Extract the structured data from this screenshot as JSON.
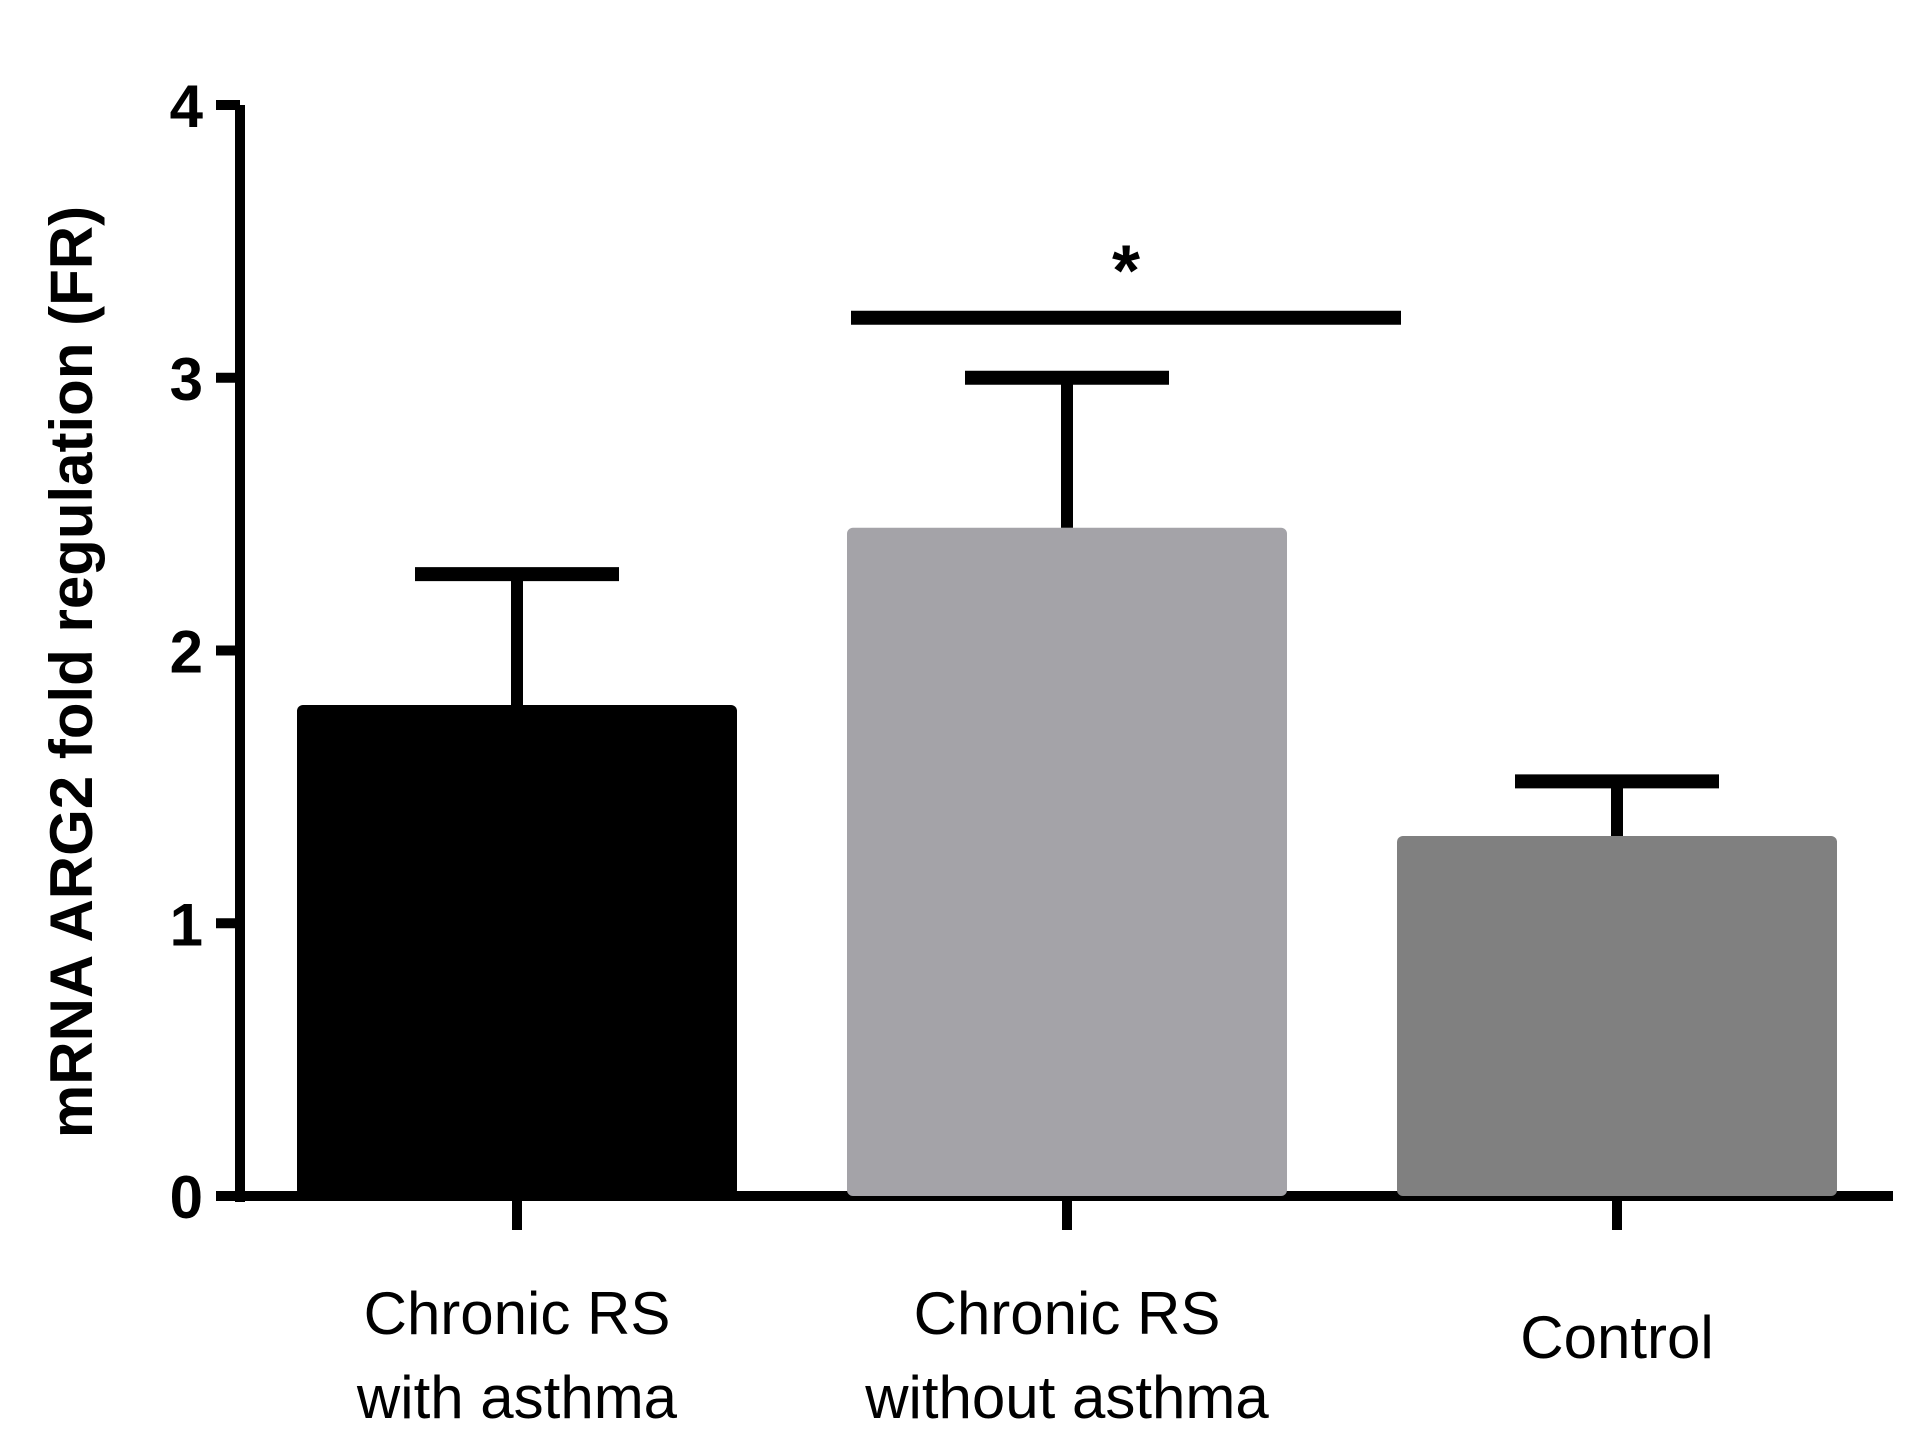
{
  "chart_data": {
    "type": "bar",
    "title": "",
    "xlabel": "",
    "ylabel": "mRNA ARG2 fold regulation (FR)",
    "ylim": [
      0,
      4
    ],
    "yticks": [
      "0",
      "1",
      "2",
      "3",
      "4"
    ],
    "categories": [
      {
        "line1": "Chronic RS",
        "line2": "with asthma"
      },
      {
        "line1": "Chronic RS",
        "line2": "without asthma"
      },
      {
        "line1": "Control",
        "line2": ""
      }
    ],
    "values": [
      1.8,
      2.45,
      1.32
    ],
    "errors_upper": [
      2.28,
      3.0,
      1.52
    ],
    "colors": [
      "#000000",
      "#a4a3a8",
      "#808080"
    ],
    "significance": {
      "from": 1,
      "to": 2,
      "level": 3.22,
      "label": "*"
    },
    "grid": false,
    "legend": "none"
  }
}
